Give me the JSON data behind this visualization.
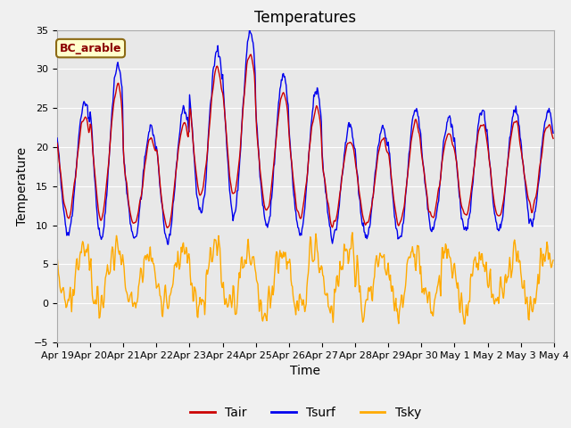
{
  "title": "Temperatures",
  "xlabel": "Time",
  "ylabel": "Temperature",
  "ylim": [
    -5,
    35
  ],
  "annotation": "BC_arable",
  "legend_labels": [
    "Tair",
    "Tsurf",
    "Tsky"
  ],
  "tair_color": "#cc0000",
  "tsurf_color": "#0000ee",
  "tsky_color": "#ffaa00",
  "background_color": "#e8e8e8",
  "grid_color": "#ffffff",
  "n_days": 15,
  "n_per_day": 48,
  "xtick_labels": [
    "Apr 19",
    "Apr 20",
    "Apr 21",
    "Apr 22",
    "Apr 23",
    "Apr 24",
    "Apr 25",
    "Apr 26",
    "Apr 27",
    "Apr 28",
    "Apr 29",
    "Apr 30",
    "May 1",
    "May 2",
    "May 3",
    "May 4"
  ],
  "ytick_labels": [
    -5,
    0,
    5,
    10,
    15,
    20,
    25,
    30,
    35
  ],
  "title_fontsize": 12,
  "axis_fontsize": 10,
  "tick_fontsize": 8,
  "legend_fontsize": 10,
  "fig_facecolor": "#f0f0f0"
}
